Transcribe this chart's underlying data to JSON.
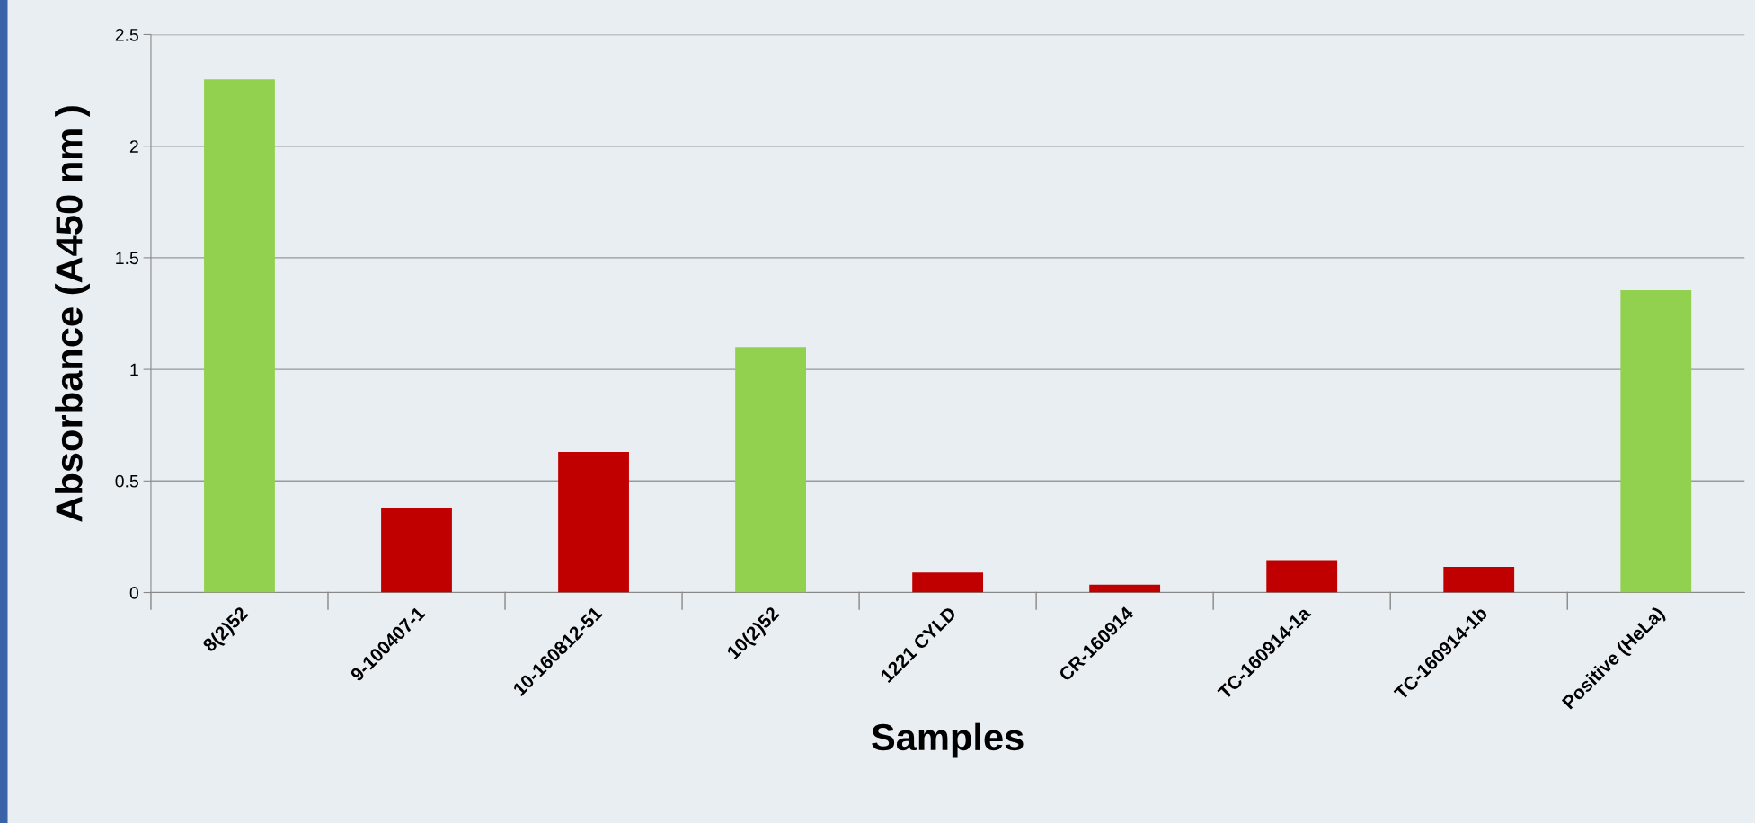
{
  "chart_data": {
    "type": "bar",
    "xlabel": "Samples",
    "ylabel": "Absorbance (A450 nm )",
    "categories": [
      "8(2)52",
      "9-100407-1",
      "10-160812-51",
      "10(2)52",
      "1221 CYLD",
      "CR-160914",
      "TC-160914-1a",
      "TC-160914-1b",
      "Positive (HeLa)"
    ],
    "values": [
      2.3,
      0.38,
      0.63,
      1.1,
      0.09,
      0.035,
      0.145,
      0.115,
      1.355
    ],
    "colors": [
      "#92d050",
      "#c00000",
      "#c00000",
      "#92d050",
      "#c00000",
      "#c00000",
      "#c00000",
      "#c00000",
      "#92d050"
    ],
    "ylim": [
      0,
      2.5
    ],
    "yticks": [
      0,
      0.5,
      1,
      1.5,
      2,
      2.5
    ],
    "grid": "y"
  }
}
